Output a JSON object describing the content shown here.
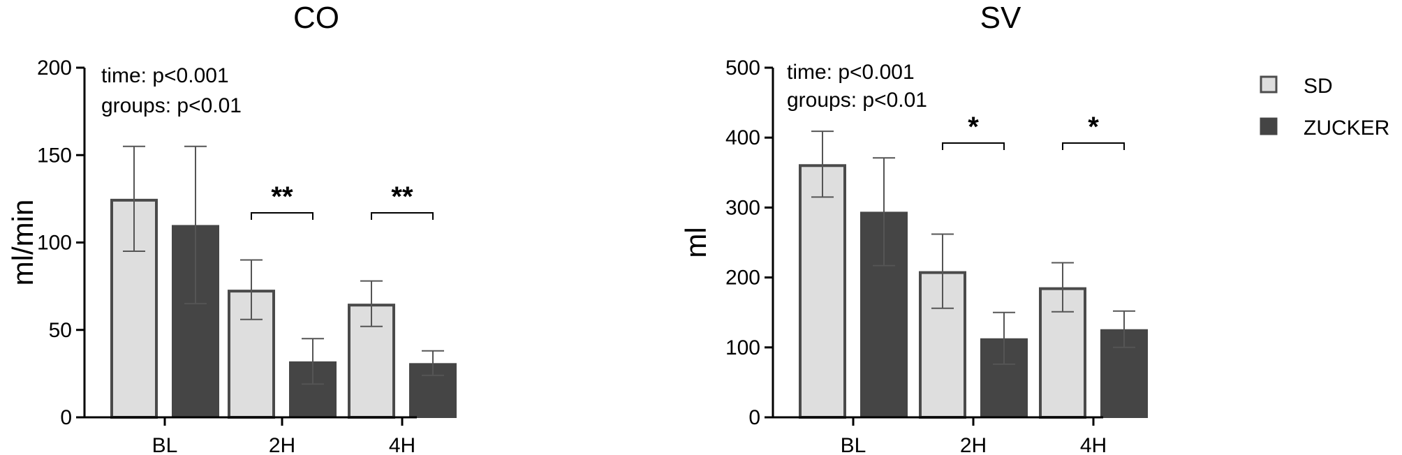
{
  "chart_data": [
    {
      "type": "bar",
      "title": "CO",
      "ylabel": "ml/min",
      "xlabel": "",
      "categories": [
        "BL",
        "2H",
        "4H"
      ],
      "ylim": [
        0,
        200
      ],
      "yticks": [
        0,
        50,
        100,
        150,
        200
      ],
      "series": [
        {
          "name": "SD",
          "values": [
            125,
            73,
            65
          ],
          "errors": [
            30,
            17,
            13
          ]
        },
        {
          "name": "ZUCKER",
          "values": [
            110,
            32,
            31
          ],
          "errors": [
            45,
            13,
            7
          ]
        }
      ],
      "stats_text": [
        "time: p<0.001",
        "groups: p<0.01"
      ],
      "significance": [
        {
          "category": "2H",
          "label": "**"
        },
        {
          "category": "4H",
          "label": "**"
        }
      ]
    },
    {
      "type": "bar",
      "title": "SV",
      "ylabel": "ml",
      "xlabel": "",
      "categories": [
        "BL",
        "2H",
        "4H"
      ],
      "ylim": [
        0,
        500
      ],
      "yticks": [
        0,
        100,
        200,
        300,
        400,
        500
      ],
      "series": [
        {
          "name": "SD",
          "values": [
            362,
            209,
            186
          ],
          "errors": [
            47,
            53,
            35
          ]
        },
        {
          "name": "ZUCKER",
          "values": [
            294,
            113,
            126
          ],
          "errors": [
            77,
            37,
            26
          ]
        }
      ],
      "stats_text": [
        "time: p<0.001",
        "groups: p<0.01"
      ],
      "significance": [
        {
          "category": "2H",
          "label": "*"
        },
        {
          "category": "4H",
          "label": "*"
        }
      ]
    }
  ],
  "legend": {
    "items": [
      {
        "name": "SD",
        "color": "#dedede",
        "border": "#4d4d4d"
      },
      {
        "name": "ZUCKER",
        "color": "#444444",
        "border": "#444444"
      }
    ]
  },
  "colors": {
    "sd_fill": "#dedede",
    "sd_border": "#4a4a4a",
    "zucker_fill": "#454545",
    "axis": "#000000"
  }
}
